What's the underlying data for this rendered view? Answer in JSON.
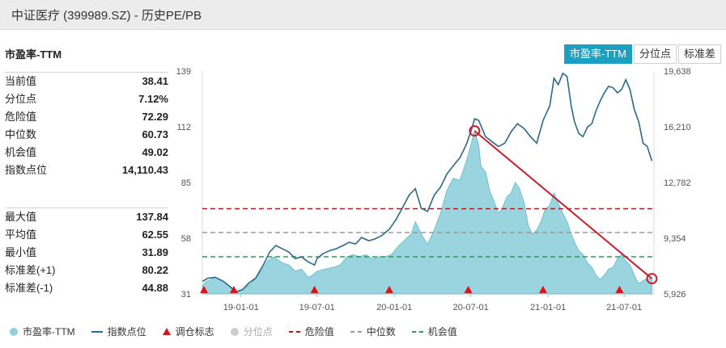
{
  "header": {
    "title": "中证医疗 (399989.SZ) - 历史PE/PB"
  },
  "metric_title": "市盈率-TTM",
  "tabs": [
    {
      "label": "市盈率-TTM",
      "active": true
    },
    {
      "label": "分位点",
      "active": false
    },
    {
      "label": "标准差",
      "active": false
    }
  ],
  "stats_current": [
    {
      "label": "当前值",
      "value": "38.41"
    },
    {
      "label": "分位点",
      "value": "7.12%"
    },
    {
      "label": "危险值",
      "value": "72.29"
    },
    {
      "label": "中位数",
      "value": "60.73"
    },
    {
      "label": "机会值",
      "value": "49.02"
    },
    {
      "label": "指数点位",
      "value": "14,110.43"
    }
  ],
  "stats_range": [
    {
      "label": "最大值",
      "value": "137.84"
    },
    {
      "label": "平均值",
      "value": "62.55"
    },
    {
      "label": "最小值",
      "value": "31.89"
    },
    {
      "label": "标准差(+1)",
      "value": "80.22"
    },
    {
      "label": "标准差(-1)",
      "value": "44.88"
    }
  ],
  "legend": [
    {
      "label": "市盈率-TTM",
      "symbol": "dot",
      "color": "#8fd0dc",
      "muted": false
    },
    {
      "label": "指数点位",
      "symbol": "line",
      "color": "#2a6a8a",
      "muted": false
    },
    {
      "label": "调仓标志",
      "symbol": "triangle",
      "color": "#d8151b",
      "muted": false
    },
    {
      "label": "分位点",
      "symbol": "dot",
      "color": "#cccccc",
      "muted": true
    },
    {
      "label": "危险值",
      "symbol": "dash",
      "color": "#b01c1c",
      "muted": false
    },
    {
      "label": "中位数",
      "symbol": "dash",
      "color": "#999999",
      "muted": false
    },
    {
      "label": "机会值",
      "symbol": "dash",
      "color": "#2e9a5a",
      "muted": false
    }
  ],
  "colors": {
    "pe_area": "#8fd0dc",
    "pe_area_edge": "#6cc0d0",
    "index_line": "#2a6a8a",
    "danger": "#b01c1c",
    "median": "#999999",
    "opportunity": "#2e9a5a",
    "marker": "#d8151b",
    "annotation": "#c8202a"
  },
  "chart_data": {
    "type": "area",
    "x_ticks": [
      "19-01-01",
      "19-07-01",
      "20-01-01",
      "20-07-01",
      "21-01-01",
      "21-07-01"
    ],
    "x_range": [
      "2018-10-01",
      "2021-09-10"
    ],
    "y_left": {
      "ticks": [
        31,
        58,
        85,
        112,
        139
      ],
      "range": [
        31,
        139
      ]
    },
    "y_right": {
      "ticks": [
        "5,926",
        "9,354",
        "12,782",
        "16,210",
        "19,638"
      ],
      "range": [
        5926,
        19638
      ]
    },
    "reference_lines": [
      {
        "name": "危险值",
        "value": 72.29
      },
      {
        "name": "中位数",
        "value": 60.73
      },
      {
        "name": "机会值",
        "value": 49.02
      }
    ],
    "series": [
      {
        "name": "市盈率-TTM",
        "axis": "left",
        "points": [
          [
            "2018-10-01",
            35
          ],
          [
            "2018-10-10",
            37
          ],
          [
            "2018-11-01",
            39
          ],
          [
            "2018-11-20",
            37
          ],
          [
            "2018-12-10",
            34
          ],
          [
            "2018-12-25",
            32
          ],
          [
            "2019-01-05",
            33
          ],
          [
            "2019-01-25",
            36
          ],
          [
            "2019-02-15",
            41
          ],
          [
            "2019-03-05",
            47
          ],
          [
            "2019-03-20",
            49
          ],
          [
            "2019-04-10",
            46
          ],
          [
            "2019-04-25",
            45
          ],
          [
            "2019-05-10",
            42
          ],
          [
            "2019-05-25",
            43
          ],
          [
            "2019-06-10",
            39
          ],
          [
            "2019-06-20",
            40
          ],
          [
            "2019-07-01",
            42
          ],
          [
            "2019-07-20",
            43
          ],
          [
            "2019-08-10",
            44
          ],
          [
            "2019-08-25",
            45
          ],
          [
            "2019-09-10",
            49
          ],
          [
            "2019-09-25",
            50
          ],
          [
            "2019-10-10",
            49
          ],
          [
            "2019-10-25",
            50
          ],
          [
            "2019-11-10",
            48
          ],
          [
            "2019-11-25",
            49
          ],
          [
            "2019-12-10",
            49
          ],
          [
            "2019-12-25",
            50
          ],
          [
            "2020-01-10",
            54
          ],
          [
            "2020-01-25",
            57
          ],
          [
            "2020-02-10",
            60
          ],
          [
            "2020-02-20",
            66
          ],
          [
            "2020-03-05",
            60
          ],
          [
            "2020-03-20",
            55
          ],
          [
            "2020-04-05",
            62
          ],
          [
            "2020-04-20",
            70
          ],
          [
            "2020-05-05",
            81
          ],
          [
            "2020-05-20",
            87
          ],
          [
            "2020-06-05",
            86
          ],
          [
            "2020-06-20",
            95
          ],
          [
            "2020-07-01",
            103
          ],
          [
            "2020-07-10",
            110
          ],
          [
            "2020-07-20",
            103
          ],
          [
            "2020-07-25",
            93
          ],
          [
            "2020-08-05",
            90
          ],
          [
            "2020-08-15",
            81
          ],
          [
            "2020-08-25",
            76
          ],
          [
            "2020-09-05",
            70
          ],
          [
            "2020-09-15",
            73
          ],
          [
            "2020-09-25",
            78
          ],
          [
            "2020-10-05",
            80
          ],
          [
            "2020-10-15",
            85
          ],
          [
            "2020-10-25",
            82
          ],
          [
            "2020-11-05",
            75
          ],
          [
            "2020-11-15",
            64
          ],
          [
            "2020-11-25",
            60
          ],
          [
            "2020-12-05",
            62
          ],
          [
            "2020-12-15",
            66
          ],
          [
            "2020-12-25",
            72
          ],
          [
            "2021-01-05",
            74
          ],
          [
            "2021-01-15",
            80
          ],
          [
            "2021-01-25",
            75
          ],
          [
            "2021-02-05",
            70
          ],
          [
            "2021-02-15",
            66
          ],
          [
            "2021-02-25",
            60
          ],
          [
            "2021-03-05",
            56
          ],
          [
            "2021-03-15",
            52
          ],
          [
            "2021-03-25",
            50
          ],
          [
            "2021-04-05",
            46
          ],
          [
            "2021-04-15",
            44
          ],
          [
            "2021-04-25",
            40
          ],
          [
            "2021-05-05",
            38
          ],
          [
            "2021-05-15",
            40
          ],
          [
            "2021-05-25",
            43
          ],
          [
            "2021-06-05",
            44
          ],
          [
            "2021-06-15",
            48
          ],
          [
            "2021-06-25",
            50
          ],
          [
            "2021-07-05",
            47
          ],
          [
            "2021-07-15",
            45
          ],
          [
            "2021-07-25",
            40
          ],
          [
            "2021-08-05",
            36
          ],
          [
            "2021-08-20",
            38
          ],
          [
            "2021-09-05",
            38.41
          ]
        ]
      },
      {
        "name": "指数点位",
        "axis": "right",
        "points": [
          [
            "2018-10-01",
            6700
          ],
          [
            "2018-10-15",
            6900
          ],
          [
            "2018-11-01",
            6950
          ],
          [
            "2018-11-20",
            6700
          ],
          [
            "2018-12-05",
            6400
          ],
          [
            "2018-12-20",
            6050
          ],
          [
            "2019-01-05",
            6200
          ],
          [
            "2019-01-20",
            6600
          ],
          [
            "2019-02-05",
            6900
          ],
          [
            "2019-02-25",
            7800
          ],
          [
            "2019-03-10",
            8500
          ],
          [
            "2019-03-25",
            8900
          ],
          [
            "2019-04-10",
            8700
          ],
          [
            "2019-04-25",
            8500
          ],
          [
            "2019-05-10",
            8100
          ],
          [
            "2019-05-25",
            8200
          ],
          [
            "2019-06-10",
            7900
          ],
          [
            "2019-06-25",
            7700
          ],
          [
            "2019-07-01",
            8100
          ],
          [
            "2019-07-15",
            8400
          ],
          [
            "2019-08-01",
            8600
          ],
          [
            "2019-08-15",
            8700
          ],
          [
            "2019-09-01",
            8900
          ],
          [
            "2019-09-15",
            9100
          ],
          [
            "2019-10-01",
            9000
          ],
          [
            "2019-10-15",
            9400
          ],
          [
            "2019-11-01",
            9200
          ],
          [
            "2019-11-15",
            9300
          ],
          [
            "2019-12-01",
            9500
          ],
          [
            "2019-12-20",
            9900
          ],
          [
            "2020-01-05",
            10500
          ],
          [
            "2020-01-20",
            11200
          ],
          [
            "2020-02-05",
            12000
          ],
          [
            "2020-02-20",
            12400
          ],
          [
            "2020-03-05",
            11200
          ],
          [
            "2020-03-20",
            11000
          ],
          [
            "2020-04-05",
            12000
          ],
          [
            "2020-04-20",
            12500
          ],
          [
            "2020-05-05",
            13300
          ],
          [
            "2020-05-20",
            13800
          ],
          [
            "2020-06-05",
            14300
          ],
          [
            "2020-06-20",
            15100
          ],
          [
            "2020-07-01",
            15900
          ],
          [
            "2020-07-10",
            16700
          ],
          [
            "2020-07-20",
            16600
          ],
          [
            "2020-08-05",
            15600
          ],
          [
            "2020-08-20",
            15300
          ],
          [
            "2020-09-05",
            15000
          ],
          [
            "2020-09-20",
            15200
          ],
          [
            "2020-10-05",
            15900
          ],
          [
            "2020-10-20",
            16400
          ],
          [
            "2020-11-05",
            16100
          ],
          [
            "2020-11-20",
            15600
          ],
          [
            "2020-12-05",
            15200
          ],
          [
            "2020-12-20",
            16600
          ],
          [
            "2021-01-05",
            17500
          ],
          [
            "2021-01-15",
            19200
          ],
          [
            "2021-01-25",
            18800
          ],
          [
            "2021-02-05",
            19500
          ],
          [
            "2021-02-15",
            19300
          ],
          [
            "2021-02-25",
            17500
          ],
          [
            "2021-03-05",
            16500
          ],
          [
            "2021-03-15",
            15800
          ],
          [
            "2021-03-25",
            15600
          ],
          [
            "2021-04-05",
            16200
          ],
          [
            "2021-04-15",
            16400
          ],
          [
            "2021-04-25",
            17200
          ],
          [
            "2021-05-05",
            17800
          ],
          [
            "2021-05-15",
            18300
          ],
          [
            "2021-05-25",
            18700
          ],
          [
            "2021-06-05",
            18600
          ],
          [
            "2021-06-15",
            18300
          ],
          [
            "2021-06-25",
            18500
          ],
          [
            "2021-07-05",
            19100
          ],
          [
            "2021-07-15",
            18500
          ],
          [
            "2021-07-25",
            17300
          ],
          [
            "2021-08-05",
            16500
          ],
          [
            "2021-08-15",
            15200
          ],
          [
            "2021-08-25",
            15000
          ],
          [
            "2021-09-05",
            14110.43
          ]
        ]
      }
    ],
    "rebalance_markers": [
      "2018-10-05",
      "2018-12-15",
      "2019-06-25",
      "2019-12-20",
      "2020-06-25",
      "2020-12-20",
      "2021-06-20"
    ],
    "annotation": {
      "from": [
        "2020-07-10",
        110
      ],
      "to": [
        "2021-09-05",
        38.41
      ]
    }
  }
}
